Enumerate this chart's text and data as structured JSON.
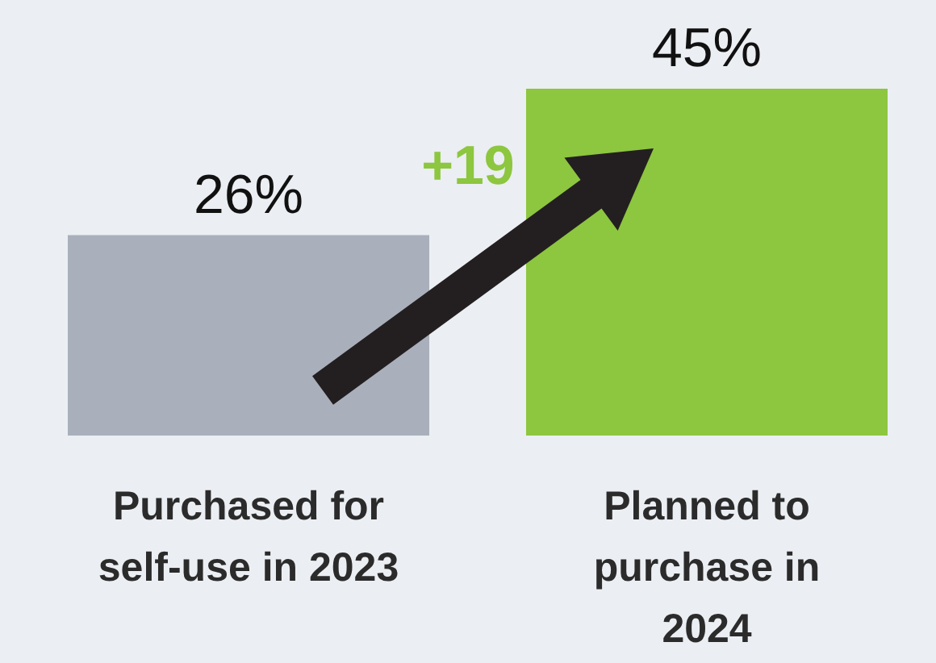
{
  "chart_data": {
    "type": "bar",
    "categories": [
      "Purchased for self-use in 2023",
      "Planned to purchase in 2024"
    ],
    "values": [
      26,
      45
    ],
    "value_labels": [
      "26%",
      "45%"
    ],
    "colors": [
      "#a9b0bb",
      "#8dc63f"
    ],
    "annotations": [
      "+19"
    ],
    "tick_labels": "x"
  }
}
